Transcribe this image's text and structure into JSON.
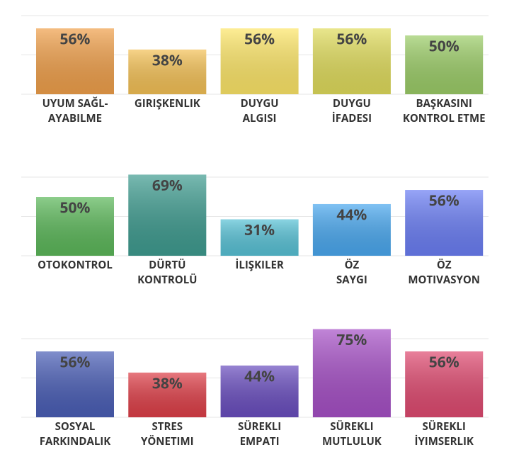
{
  "chart_data": [
    {
      "type": "bar",
      "categories": [
        [
          "UYUM SAĞL-",
          "AYABILME"
        ],
        [
          "GIRIŞKENLIK"
        ],
        [
          "DUYGU",
          "ALGISI"
        ],
        [
          "DUYGU",
          "İFADESI"
        ],
        [
          "BAŞKASINI",
          "KONTROL ETME"
        ]
      ],
      "values": [
        56,
        38,
        56,
        56,
        50
      ],
      "value_labels": [
        "56%",
        "38%",
        "56%",
        "56%",
        "50%"
      ],
      "colors": [
        "#f0a04b",
        "#f4c156",
        "#fde668",
        "#e0dc5c",
        "#9ccd68"
      ],
      "ylim": [
        0,
        100
      ],
      "grid": true
    },
    {
      "type": "bar",
      "categories": [
        [
          "OTOKONTROL"
        ],
        [
          "DÜRTÜ",
          "KONTROLÜ"
        ],
        [
          "İLIŞKILER"
        ],
        [
          "ÖZ",
          "SAYGI"
        ],
        [
          "ÖZ",
          "MOTIVASYON"
        ]
      ],
      "values": [
        50,
        69,
        31,
        44,
        56
      ],
      "value_labels": [
        "50%",
        "69%",
        "31%",
        "44%",
        "56%"
      ],
      "colors": [
        "#5cb85a",
        "#3f9c90",
        "#58c2d6",
        "#4aa8ef",
        "#6b7ef4"
      ],
      "ylim": [
        0,
        100
      ],
      "grid": true
    },
    {
      "type": "bar",
      "categories": [
        [
          "SOSYAL",
          "FARKINDALIK"
        ],
        [
          "STRES",
          "YÖNETIMI"
        ],
        [
          "SÜREKLI",
          "EMPATI"
        ],
        [
          "SÜREKLI",
          "MUTLULUK"
        ],
        [
          "SÜREKLI",
          "İYIMSERLIK"
        ]
      ],
      "values": [
        56,
        38,
        44,
        75,
        56
      ],
      "value_labels": [
        "56%",
        "38%",
        "44%",
        "75%",
        "56%"
      ],
      "colors": [
        "#4a5eb6",
        "#de3f48",
        "#6a4ebf",
        "#a650c6",
        "#df4a70"
      ],
      "ylim": [
        0,
        100
      ],
      "grid": true
    }
  ]
}
